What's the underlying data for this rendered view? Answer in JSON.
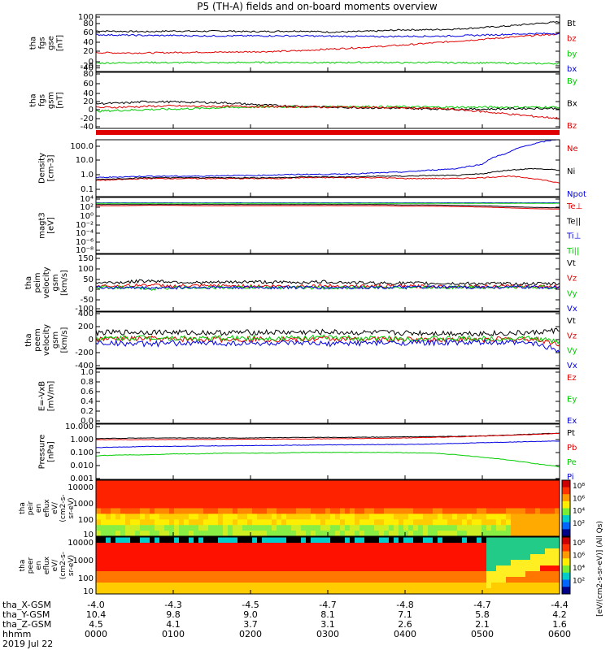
{
  "title": "P5 (TH-A) fields and on-board moments overview",
  "date_label": "2019 Jul 22",
  "colors": {
    "black": "#000000",
    "red": "#e00000",
    "green": "#00cc00",
    "blue": "#0000e0"
  },
  "chart_data": [
    {
      "type": "line",
      "id": "fgs_gse",
      "ylabel": [
        "tha",
        "fgs",
        "gse",
        "[nT]"
      ],
      "yticks": [
        "100",
        "80",
        "60",
        "40",
        "20",
        "0",
        "-20",
        "-40"
      ],
      "ylim": [
        -50,
        100
      ],
      "series": [
        {
          "name": "Bt",
          "color": "black",
          "values": [
            57,
            56,
            55,
            57,
            56,
            57,
            55,
            56,
            57,
            54,
            55,
            57,
            60,
            60,
            62,
            66,
            70,
            76,
            81
          ]
        },
        {
          "name": "bz",
          "color": "red",
          "values": [
            0,
            -1,
            -1,
            0,
            1,
            1,
            2,
            3,
            5,
            9,
            12,
            16,
            20,
            25,
            30,
            35,
            40,
            45,
            49
          ]
        },
        {
          "name": "by",
          "color": "green",
          "values": [
            -28,
            -27,
            -26,
            -27,
            -26,
            -27,
            -26,
            -26,
            -26,
            -27,
            -26,
            -26,
            -27,
            -26,
            -27,
            -27,
            -28,
            -29,
            -29
          ]
        },
        {
          "name": "bx",
          "color": "blue",
          "values": [
            47,
            46,
            45,
            45,
            44,
            44,
            44,
            44,
            44,
            43,
            43,
            42,
            43,
            43,
            44,
            46,
            48,
            50,
            50
          ]
        }
      ]
    },
    {
      "type": "line",
      "id": "fgs_gsm",
      "ylabel": [
        "tha",
        "fgs",
        "gsm",
        "[nT]"
      ],
      "yticks": [
        "80",
        "60",
        "40",
        "20",
        "0",
        "-20",
        "-40"
      ],
      "ylim": [
        -50,
        90
      ],
      "series": [
        {
          "name": "By",
          "color": "green",
          "values": [
            -7,
            -5,
            -3,
            -2,
            0,
            2,
            3,
            4,
            4,
            4,
            5,
            4,
            4,
            3,
            3,
            3,
            3,
            3,
            3
          ]
        },
        {
          "name": "Bx",
          "color": "black",
          "values": [
            12,
            13,
            17,
            16,
            15,
            14,
            10,
            7,
            5,
            3,
            2,
            1,
            0,
            -1,
            -2,
            -2,
            -1,
            0,
            0
          ]
        },
        {
          "name": "Bz",
          "color": "red",
          "values": [
            2,
            3,
            5,
            6,
            5,
            5,
            5,
            4,
            4,
            3,
            3,
            2,
            1,
            0,
            -3,
            -8,
            -14,
            -20,
            -25
          ]
        }
      ]
    },
    {
      "type": "line",
      "id": "density",
      "ylabel": [
        "Density",
        "[cm-3]"
      ],
      "log": true,
      "yticks": [
        "100.0",
        "10.0",
        "1.0",
        "0.1"
      ],
      "ylim": [
        0.1,
        100
      ],
      "series": [
        {
          "name": "Ne",
          "color": "red",
          "values": [
            0.7,
            0.8,
            0.9,
            0.9,
            0.9,
            0.9,
            0.9,
            0.9,
            1.0,
            1.0,
            1.0,
            1.0,
            0.9,
            0.9,
            0.9,
            1.0,
            1.2,
            0.9,
            0.5
          ]
        },
        {
          "name": "Ni",
          "color": "black",
          "values": [
            0.8,
            0.9,
            1.0,
            1.0,
            1.0,
            1.0,
            1.0,
            1.0,
            1.1,
            1.1,
            1.1,
            1.2,
            1.2,
            1.3,
            1.3,
            1.6,
            2.5,
            3.0,
            2.5
          ]
        },
        {
          "name": "Npot",
          "color": "blue",
          "values": [
            1.0,
            1.1,
            1.2,
            1.2,
            1.2,
            1.3,
            1.3,
            1.4,
            1.5,
            1.5,
            1.6,
            1.8,
            2.0,
            2.5,
            3.0,
            5.0,
            20,
            60,
            110
          ]
        }
      ]
    },
    {
      "type": "line",
      "id": "temperature",
      "ylabel": [
        "magt3",
        "[eV]"
      ],
      "log": true,
      "yticks": [
        "10⁴",
        "10²",
        "10⁰",
        "10⁻²",
        "10⁻⁴",
        "10⁻⁶",
        "10⁻⁸"
      ],
      "ylim": [
        -9,
        4.5
      ],
      "series": [
        {
          "name": "Te⊥",
          "color": "red",
          "values": [
            2.5,
            2.5,
            2.6,
            2.6,
            2.5,
            2.5,
            2.5,
            2.5,
            2.5,
            2.5,
            2.5,
            2.5,
            2.4,
            2.4,
            2.3,
            2.2,
            2.0,
            1.8,
            1.7
          ]
        },
        {
          "name": "Te||",
          "color": "black",
          "values": [
            2.8,
            2.8,
            2.8,
            2.8,
            2.8,
            2.8,
            2.8,
            2.8,
            2.8,
            2.8,
            2.8,
            2.8,
            2.7,
            2.7,
            2.6,
            2.5,
            2.3,
            2.1,
            2.0
          ]
        },
        {
          "name": "Ti⊥",
          "color": "blue",
          "values": [
            3.2,
            3.2,
            3.2,
            3.2,
            3.2,
            3.2,
            3.2,
            3.2,
            3.2,
            3.2,
            3.2,
            3.2,
            3.2,
            3.2,
            3.2,
            3.2,
            3.2,
            3.2,
            3.2
          ]
        },
        {
          "name": "Ti||",
          "color": "green",
          "values": [
            3.1,
            3.1,
            3.1,
            3.1,
            3.1,
            3.1,
            3.1,
            3.1,
            3.1,
            3.1,
            3.1,
            3.1,
            3.1,
            3.1,
            3.1,
            3.1,
            3.1,
            3.1,
            3.1
          ]
        }
      ]
    },
    {
      "type": "line",
      "id": "peim_velocity",
      "ylabel": [
        "tha",
        "peim",
        "velocity",
        "gsm",
        "[km/s]"
      ],
      "yticks": [
        "150",
        "100",
        "50",
        "0",
        "-50",
        "-100"
      ],
      "ylim": [
        -120,
        160
      ],
      "series": [
        {
          "name": "Vt",
          "color": "black",
          "values": [
            20,
            22,
            30,
            25,
            20,
            22,
            25,
            22,
            22,
            25,
            20,
            18,
            18,
            17,
            16,
            16,
            15,
            15,
            15
          ]
        },
        {
          "name": "Vz",
          "color": "red",
          "values": [
            5,
            4,
            10,
            3,
            4,
            5,
            4,
            3,
            4,
            5,
            3,
            3,
            3,
            2,
            2,
            2,
            2,
            2,
            2
          ]
        },
        {
          "name": "Vy",
          "color": "green",
          "values": [
            -2,
            -3,
            -10,
            -4,
            -3,
            -4,
            -3,
            -4,
            -3,
            -6,
            -3,
            -3,
            -2,
            -2,
            -2,
            -2,
            -2,
            -2,
            -2
          ]
        },
        {
          "name": "Vx",
          "color": "blue",
          "values": [
            -3,
            -4,
            -6,
            -4,
            -3,
            -3,
            -3,
            -3,
            -3,
            -5,
            -3,
            -3,
            -3,
            -2,
            -2,
            -2,
            -2,
            -2,
            -2
          ]
        }
      ]
    },
    {
      "type": "line",
      "id": "peem_velocity",
      "ylabel": [
        "tha",
        "peem",
        "velocity",
        "gsm",
        "[km/s]"
      ],
      "yticks": [
        "400",
        "200",
        "0",
        "-200",
        "-400"
      ],
      "ylim": [
        -420,
        420
      ],
      "series": [
        {
          "name": "Vt",
          "color": "black",
          "values": [
            110,
            115,
            120,
            115,
            110,
            110,
            115,
            115,
            115,
            120,
            110,
            110,
            105,
            105,
            100,
            100,
            100,
            110,
            150
          ]
        },
        {
          "name": "Vz",
          "color": "red",
          "values": [
            10,
            15,
            20,
            10,
            10,
            10,
            15,
            10,
            10,
            20,
            10,
            10,
            10,
            10,
            10,
            10,
            10,
            15,
            -60
          ]
        },
        {
          "name": "Vy",
          "color": "green",
          "values": [
            20,
            30,
            40,
            30,
            25,
            30,
            30,
            30,
            30,
            40,
            25,
            25,
            20,
            20,
            20,
            20,
            20,
            25,
            -30
          ]
        },
        {
          "name": "Vx",
          "color": "blue",
          "values": [
            -40,
            -50,
            -60,
            -50,
            -45,
            -50,
            -50,
            -50,
            -50,
            -60,
            -45,
            -45,
            -40,
            -40,
            -40,
            -40,
            -40,
            -50,
            -150
          ]
        }
      ]
    },
    {
      "type": "line",
      "id": "e_field",
      "ylabel": [
        "E=-VxB",
        "[mV/m]"
      ],
      "yticks": [
        "1.0",
        "0.8",
        "0.6",
        "0.4",
        "0.2",
        "0.0"
      ],
      "ylim": [
        0,
        1
      ],
      "series": [
        {
          "name": "Ez",
          "color": "red",
          "values": []
        },
        {
          "name": "Ey",
          "color": "green",
          "values": []
        },
        {
          "name": "Ex",
          "color": "blue",
          "values": []
        }
      ]
    },
    {
      "type": "line",
      "id": "pressure",
      "ylabel": [
        "Pressure",
        "[nPa]"
      ],
      "log": true,
      "yticks": [
        "10.000",
        "1.000",
        "0.100",
        "0.010",
        "0.001"
      ],
      "ylim": [
        0.001,
        10
      ],
      "series": [
        {
          "name": "Pt",
          "color": "black",
          "values": [
            0.9,
            0.95,
            1.0,
            1.0,
            1.0,
            1.0,
            1.0,
            1.05,
            1.1,
            1.1,
            1.1,
            1.15,
            1.2,
            1.25,
            1.3,
            1.4,
            1.6,
            1.9,
            2.2
          ]
        },
        {
          "name": "Pb",
          "color": "red",
          "values": [
            0.75,
            0.75,
            0.75,
            0.78,
            0.78,
            0.8,
            0.8,
            0.82,
            0.85,
            0.87,
            0.9,
            0.95,
            1.0,
            1.1,
            1.2,
            1.35,
            1.55,
            1.8,
            2.1
          ]
        },
        {
          "name": "Pe",
          "color": "green",
          "values": [
            0.05,
            0.06,
            0.06,
            0.07,
            0.07,
            0.08,
            0.08,
            0.08,
            0.09,
            0.09,
            0.09,
            0.09,
            0.085,
            0.08,
            0.06,
            0.04,
            0.025,
            0.014,
            0.008
          ]
        },
        {
          "name": "Pi",
          "color": "blue",
          "values": [
            0.2,
            0.22,
            0.24,
            0.25,
            0.26,
            0.27,
            0.28,
            0.29,
            0.3,
            0.31,
            0.32,
            0.33,
            0.34,
            0.36,
            0.4,
            0.45,
            0.5,
            0.55,
            0.6
          ]
        }
      ]
    },
    {
      "type": "heatmap",
      "id": "peir_spectrogram",
      "ylabel": [
        "tha",
        "peir",
        "en",
        "eflux",
        "eV/",
        "(cm2-s-",
        "sr-eV)"
      ],
      "yticks": [
        "10000",
        "1000",
        "100",
        "10"
      ],
      "colorbar_ticks": [
        "10⁸",
        "10⁶",
        "10⁴",
        "10²"
      ]
    },
    {
      "type": "heatmap",
      "id": "peer_spectrogram",
      "ylabel": [
        "tha",
        "peer",
        "en",
        "eflux",
        "eV/",
        "(cm2-s-",
        "sr-eV)"
      ],
      "yticks": [
        "10000",
        "1000",
        "100",
        "10"
      ],
      "colorbar_ticks": [
        "10⁸",
        "10⁶",
        "10⁴",
        "10²"
      ]
    }
  ],
  "colorbar_label": "[eV/(cm2-s-sr-eV)] (All Qs)",
  "x_axis": {
    "row_labels": [
      "tha_X-GSM",
      "tha_Y-GSM",
      "tha_Z-GSM",
      "hhmm"
    ],
    "columns": [
      [
        "-4.0",
        "10.4",
        "4.5",
        "0000"
      ],
      [
        "-4.3",
        "9.8",
        "4.1",
        "0100"
      ],
      [
        "-4.5",
        "9.0",
        "3.7",
        "0200"
      ],
      [
        "-4.7",
        "8.1",
        "3.1",
        "0300"
      ],
      [
        "-4.8",
        "7.1",
        "2.6",
        "0400"
      ],
      [
        "-4.7",
        "5.8",
        "2.1",
        "0500"
      ],
      [
        "-4.4",
        "4.2",
        "1.6",
        "0600"
      ]
    ]
  }
}
